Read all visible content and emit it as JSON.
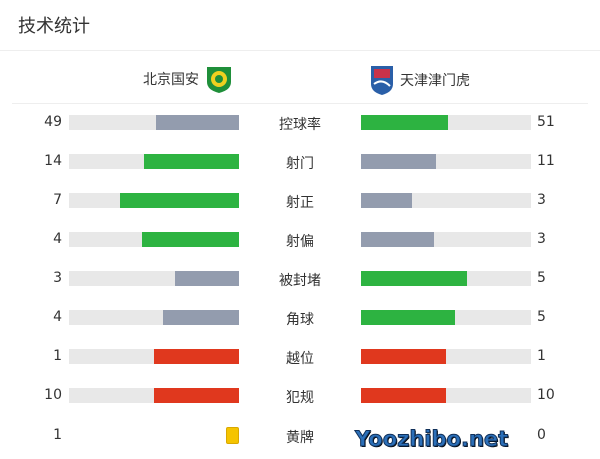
{
  "title": "技术统计",
  "home": {
    "name": "北京国安",
    "logo": "beijing-guoan-crest"
  },
  "away": {
    "name": "天津津门虎",
    "logo": "tianjin-jinmen-tiger-crest"
  },
  "colors": {
    "better": "#2db341",
    "worse": "#939cae",
    "equal": "#e0381e",
    "track": "#e8e8e8",
    "yellow_card": "#f5c400"
  },
  "stats": [
    {
      "label": "控球率",
      "home": 49,
      "away": 51
    },
    {
      "label": "射门",
      "home": 14,
      "away": 11
    },
    {
      "label": "射正",
      "home": 7,
      "away": 3
    },
    {
      "label": "射偏",
      "home": 4,
      "away": 3
    },
    {
      "label": "被封堵",
      "home": 3,
      "away": 5
    },
    {
      "label": "角球",
      "home": 4,
      "away": 5
    },
    {
      "label": "越位",
      "home": 1,
      "away": 1
    },
    {
      "label": "犯规",
      "home": 10,
      "away": 10
    }
  ],
  "yellow": {
    "label": "黄牌",
    "home": 1,
    "away": 0
  },
  "watermark": "Yoozhibo.net"
}
